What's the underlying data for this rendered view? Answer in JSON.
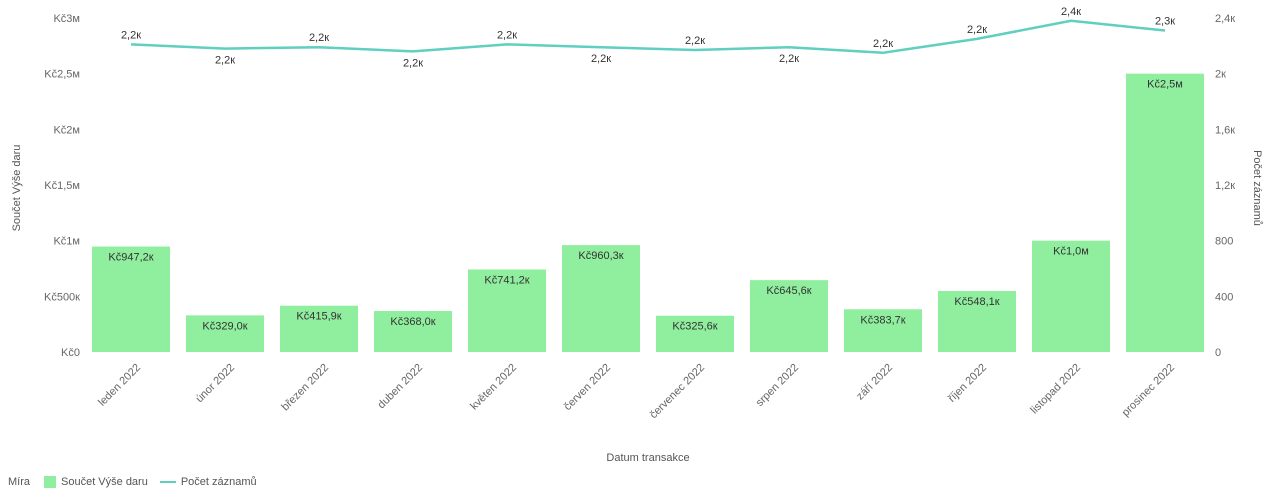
{
  "chart_data": {
    "type": "bar",
    "categories": [
      "leden 2022",
      "únor 2022",
      "březen 2022",
      "duben 2022",
      "květen 2022",
      "červen 2022",
      "červenec 2022",
      "srpen 2022",
      "září 2022",
      "říjen 2022",
      "listopad 2022",
      "prosinec 2022"
    ],
    "series": [
      {
        "name": "Součet Výše daru",
        "type": "bar",
        "axis": "left",
        "color": "#90ee9f",
        "values": [
          947200,
          329000,
          415900,
          368000,
          741200,
          960300,
          325600,
          645600,
          383700,
          548100,
          1000000,
          2500000
        ],
        "labels": [
          "Kč947,2к",
          "Kč329,0к",
          "Kč415,9к",
          "Kč368,0к",
          "Kč741,2к",
          "Kč960,3к",
          "Kč325,6к",
          "Kč645,6к",
          "Kč383,7к",
          "Kč548,1к",
          "Kč1,0м",
          "Kč2,5м"
        ]
      },
      {
        "name": "Počet záznamů",
        "type": "line",
        "axis": "right",
        "color": "#5fcfbf",
        "values": [
          2210,
          2180,
          2190,
          2160,
          2210,
          2190,
          2170,
          2190,
          2150,
          2250,
          2380,
          2310
        ],
        "labels": [
          "2,2к",
          "2,2к",
          "2,2к",
          "2,2к",
          "2,2к",
          "2,2к",
          "2,2к",
          "2,2к",
          "2,2к",
          "2,2к",
          "2,4к",
          "2,3к"
        ]
      }
    ],
    "xlabel": "Datum transakce",
    "ylabel": "Součet Výše daru",
    "y2label": "Počet záznamů",
    "ylim": [
      0,
      3000000
    ],
    "y2lim": [
      0,
      2400
    ],
    "y_ticks": [
      "Kč0",
      "Kč500к",
      "Kč1м",
      "Kč1,5м",
      "Kč2м",
      "Kč2,5м",
      "Kč3м"
    ],
    "y2_ticks": [
      "0",
      "400",
      "800",
      "1,2к",
      "1,6к",
      "2к",
      "2,4к"
    ],
    "grid": false,
    "legend": {
      "position": "bottom-left",
      "title": "Míra",
      "items": [
        "Součet Výše daru",
        "Počet záznamů"
      ]
    }
  }
}
